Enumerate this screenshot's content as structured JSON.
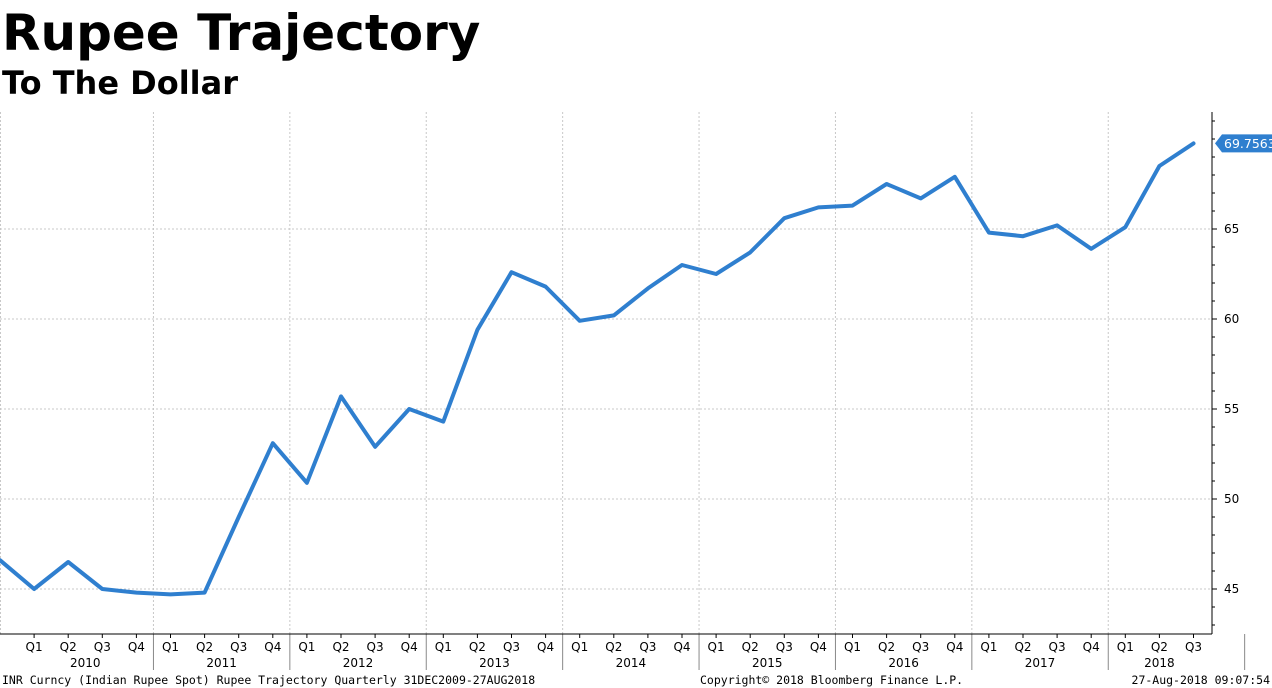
{
  "header": {
    "title": "Rupee Trajectory",
    "subtitle": "To The Dollar"
  },
  "footer": {
    "left": "INR Curncy (Indian Rupee Spot) Rupee Trajectory  Quarterly 31DEC2009-27AUG2018",
    "center": "Copyright© 2018 Bloomberg Finance L.P.",
    "right": "27-Aug-2018 09:07:54"
  },
  "colors": {
    "line": "#2f7fcf",
    "grid": "#c8c8c8",
    "axis": "#000000",
    "last_value_bg": "#2f7fcf",
    "last_value_text": "#ffffff"
  },
  "chart_data": {
    "type": "line",
    "title": "Rupee Trajectory",
    "subtitle": "To The Dollar",
    "xlabel": "",
    "ylabel": "",
    "grid": true,
    "y_axis_side": "right",
    "ylim": [
      42.5,
      71.5
    ],
    "yticks": [
      45,
      50,
      55,
      60,
      65
    ],
    "x": [
      "Q4 2009",
      "Q1 2010",
      "Q2 2010",
      "Q3 2010",
      "Q4 2010",
      "Q1 2011",
      "Q2 2011",
      "Q3 2011",
      "Q4 2011",
      "Q1 2012",
      "Q2 2012",
      "Q3 2012",
      "Q4 2012",
      "Q1 2013",
      "Q2 2013",
      "Q3 2013",
      "Q4 2013",
      "Q1 2014",
      "Q2 2014",
      "Q3 2014",
      "Q4 2014",
      "Q1 2015",
      "Q2 2015",
      "Q3 2015",
      "Q4 2015",
      "Q1 2016",
      "Q2 2016",
      "Q3 2016",
      "Q4 2016",
      "Q1 2017",
      "Q2 2017",
      "Q3 2017",
      "Q4 2017",
      "Q1 2018",
      "Q2 2018",
      "Q3 2018"
    ],
    "quarter_labels": [
      "Q1",
      "Q2",
      "Q3",
      "Q4",
      "Q1",
      "Q2",
      "Q3",
      "Q4",
      "Q1",
      "Q2",
      "Q3",
      "Q4",
      "Q1",
      "Q2",
      "Q3",
      "Q4",
      "Q1",
      "Q2",
      "Q3",
      "Q4",
      "Q1",
      "Q2",
      "Q3",
      "Q4",
      "Q1",
      "Q2",
      "Q3",
      "Q4",
      "Q1",
      "Q2",
      "Q3",
      "Q4",
      "Q1",
      "Q2",
      "Q3"
    ],
    "years": [
      "2010",
      "2011",
      "2012",
      "2013",
      "2014",
      "2015",
      "2016",
      "2017",
      "2018"
    ],
    "series": [
      {
        "values": [
          46.6,
          45.0,
          46.5,
          45.0,
          44.8,
          44.7,
          44.8,
          49.0,
          53.1,
          50.9,
          55.7,
          52.9,
          55.0,
          54.3,
          59.4,
          62.6,
          61.8,
          59.9,
          60.2,
          61.7,
          63.0,
          62.5,
          63.7,
          65.6,
          66.2,
          66.3,
          67.5,
          66.7,
          67.9,
          64.8,
          64.6,
          65.2,
          63.9,
          65.1,
          68.5,
          69.7563
        ]
      }
    ],
    "last_value_label": "69.7563"
  }
}
